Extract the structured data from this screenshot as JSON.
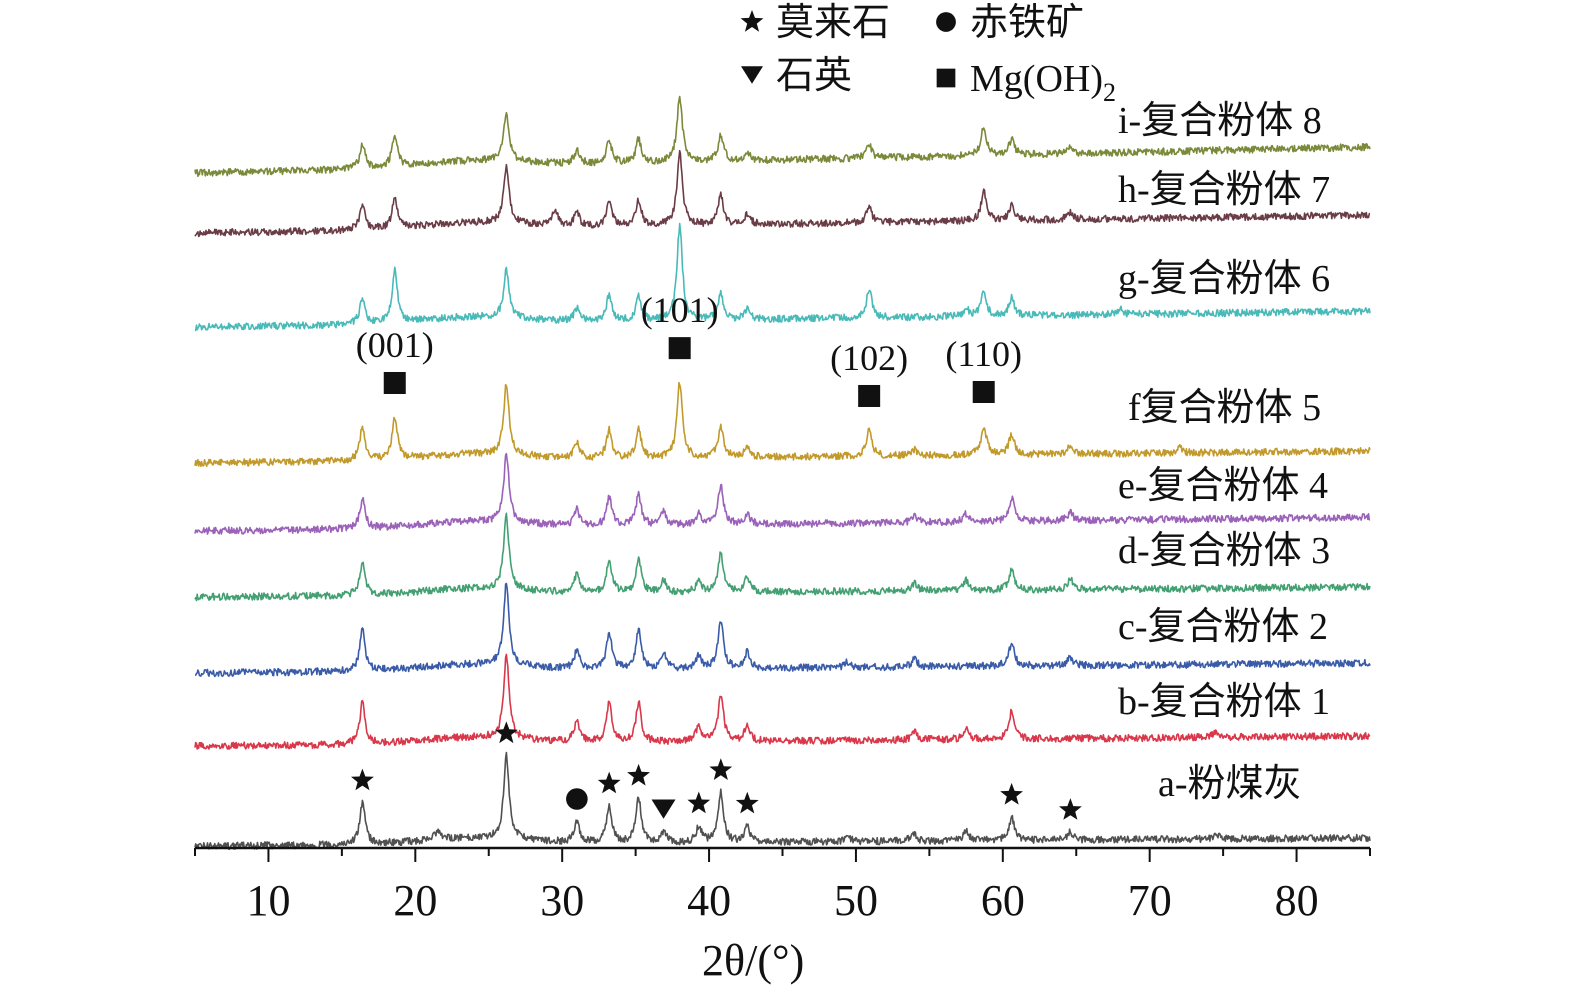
{
  "chart_data": {
    "type": "line",
    "title": "",
    "xlabel": "2θ/(°)",
    "ylabel": "",
    "xlim": [
      5,
      85
    ],
    "xticks": [
      10,
      20,
      30,
      40,
      50,
      60,
      70,
      80
    ],
    "x_tick_labels": [
      "10",
      "20",
      "30",
      "40",
      "50",
      "60",
      "70",
      "80"
    ],
    "y_axis_shown": false,
    "grid": false,
    "legend": {
      "placement": "top-center",
      "entries": [
        {
          "marker": "star",
          "label": "莫来石"
        },
        {
          "marker": "circle",
          "label": "赤铁矿"
        },
        {
          "marker": "triangle-down",
          "label": "石英"
        },
        {
          "marker": "square",
          "label": "Mg(OH)",
          "subscript": "2"
        }
      ]
    },
    "series": [
      {
        "name": "a-粉煤灰",
        "color": "#505050",
        "peaks": [
          [
            16.4,
            0.8
          ],
          [
            21.5,
            0.15
          ],
          [
            26.2,
            1.6
          ],
          [
            31.0,
            0.4
          ],
          [
            33.2,
            0.7
          ],
          [
            35.2,
            0.85
          ],
          [
            36.9,
            0.2
          ],
          [
            39.3,
            0.3
          ],
          [
            40.8,
            0.95
          ],
          [
            42.6,
            0.3
          ],
          [
            49.4,
            0.1
          ],
          [
            53.9,
            0.15
          ],
          [
            57.5,
            0.2
          ],
          [
            60.6,
            0.45
          ],
          [
            64.6,
            0.15
          ],
          [
            74.5,
            0.1
          ]
        ],
        "markers": [
          {
            "type": "star",
            "x": 16.4
          },
          {
            "type": "star",
            "x": 26.2
          },
          {
            "type": "circle",
            "x": 31.0
          },
          {
            "type": "star",
            "x": 33.2
          },
          {
            "type": "star",
            "x": 35.2
          },
          {
            "type": "triangle-down",
            "x": 36.9
          },
          {
            "type": "star",
            "x": 39.3
          },
          {
            "type": "star",
            "x": 40.8
          },
          {
            "type": "star",
            "x": 42.6
          },
          {
            "type": "star",
            "x": 60.6
          },
          {
            "type": "star",
            "x": 64.6
          }
        ]
      },
      {
        "name": "b-复合粉体 1",
        "color": "#d8384a",
        "peaks": [
          [
            16.4,
            0.8
          ],
          [
            26.2,
            1.6
          ],
          [
            31.0,
            0.4
          ],
          [
            33.2,
            0.75
          ],
          [
            35.2,
            0.75
          ],
          [
            39.3,
            0.3
          ],
          [
            40.8,
            0.9
          ],
          [
            42.6,
            0.3
          ],
          [
            54.0,
            0.15
          ],
          [
            57.5,
            0.2
          ],
          [
            60.6,
            0.55
          ],
          [
            74.5,
            0.1
          ]
        ]
      },
      {
        "name": "c-复合粉体 2",
        "color": "#3a5ca8",
        "peaks": [
          [
            16.4,
            0.8
          ],
          [
            26.2,
            1.6
          ],
          [
            31.0,
            0.35
          ],
          [
            33.2,
            0.7
          ],
          [
            35.2,
            0.75
          ],
          [
            36.9,
            0.3
          ],
          [
            39.3,
            0.25
          ],
          [
            40.8,
            0.9
          ],
          [
            42.6,
            0.3
          ],
          [
            49.4,
            0.1
          ],
          [
            54.0,
            0.15
          ],
          [
            60.6,
            0.45
          ],
          [
            64.6,
            0.15
          ]
        ]
      },
      {
        "name": "d-复合粉体 3",
        "color": "#44a072",
        "peaks": [
          [
            16.4,
            0.6
          ],
          [
            26.2,
            1.4
          ],
          [
            31.0,
            0.35
          ],
          [
            33.2,
            0.65
          ],
          [
            35.2,
            0.65
          ],
          [
            36.9,
            0.25
          ],
          [
            39.3,
            0.25
          ],
          [
            40.8,
            0.75
          ],
          [
            42.6,
            0.3
          ],
          [
            54.0,
            0.15
          ],
          [
            57.5,
            0.2
          ],
          [
            60.6,
            0.4
          ],
          [
            64.6,
            0.2
          ]
        ]
      },
      {
        "name": "e-复合粉体 4",
        "color": "#9a62b8",
        "peaks": [
          [
            16.4,
            0.55
          ],
          [
            26.2,
            1.3
          ],
          [
            31.0,
            0.3
          ],
          [
            33.2,
            0.55
          ],
          [
            35.2,
            0.6
          ],
          [
            36.9,
            0.25
          ],
          [
            39.3,
            0.2
          ],
          [
            40.8,
            0.75
          ],
          [
            42.6,
            0.2
          ],
          [
            54.0,
            0.12
          ],
          [
            57.5,
            0.15
          ],
          [
            60.6,
            0.45
          ],
          [
            64.6,
            0.15
          ]
        ]
      },
      {
        "name": "f复合粉体 5",
        "color": "#c29a2c",
        "peaks": [
          [
            16.4,
            0.65
          ],
          [
            18.6,
            0.8
          ],
          [
            26.2,
            1.35
          ],
          [
            31.0,
            0.3
          ],
          [
            33.2,
            0.55
          ],
          [
            35.2,
            0.55
          ],
          [
            38.0,
            1.45
          ],
          [
            40.8,
            0.6
          ],
          [
            42.6,
            0.2
          ],
          [
            50.9,
            0.5
          ],
          [
            54.0,
            0.12
          ],
          [
            58.7,
            0.55
          ],
          [
            60.6,
            0.4
          ],
          [
            64.6,
            0.15
          ],
          [
            72.0,
            0.1
          ]
        ],
        "plane_labels": [
          {
            "label": "(001)",
            "x": 18.6
          },
          {
            "label": "(101)",
            "x": 38.0
          },
          {
            "label": "(102)",
            "x": 50.9
          },
          {
            "label": "(110)",
            "x": 58.7
          }
        ]
      },
      {
        "name": "g-复合粉体 6",
        "color": "#4abab8",
        "peaks": [
          [
            16.4,
            0.5
          ],
          [
            18.6,
            1.0
          ],
          [
            26.2,
            0.9
          ],
          [
            31.0,
            0.25
          ],
          [
            33.2,
            0.5
          ],
          [
            35.2,
            0.45
          ],
          [
            38.0,
            1.8
          ],
          [
            40.8,
            0.5
          ],
          [
            42.6,
            0.2
          ],
          [
            50.9,
            0.55
          ],
          [
            57.5,
            0.15
          ],
          [
            58.7,
            0.45
          ],
          [
            60.6,
            0.35
          ],
          [
            68.0,
            0.1
          ]
        ]
      },
      {
        "name": "h-复合粉体 7",
        "color": "#6a3c46",
        "peaks": [
          [
            16.4,
            0.5
          ],
          [
            18.6,
            0.55
          ],
          [
            26.2,
            1.1
          ],
          [
            29.5,
            0.3
          ],
          [
            31.0,
            0.25
          ],
          [
            33.2,
            0.45
          ],
          [
            35.2,
            0.5
          ],
          [
            38.0,
            1.4
          ],
          [
            40.8,
            0.55
          ],
          [
            42.6,
            0.2
          ],
          [
            50.9,
            0.3
          ],
          [
            58.7,
            0.55
          ],
          [
            60.6,
            0.3
          ],
          [
            64.6,
            0.15
          ]
        ]
      },
      {
        "name": "i-复合粉体 8",
        "color": "#7a8a3a",
        "peaks": [
          [
            16.4,
            0.45
          ],
          [
            18.6,
            0.6
          ],
          [
            26.2,
            0.95
          ],
          [
            31.0,
            0.25
          ],
          [
            33.2,
            0.45
          ],
          [
            35.2,
            0.45
          ],
          [
            38.0,
            1.25
          ],
          [
            40.8,
            0.5
          ],
          [
            42.6,
            0.15
          ],
          [
            50.9,
            0.25
          ],
          [
            58.7,
            0.55
          ],
          [
            60.6,
            0.3
          ],
          [
            64.6,
            0.12
          ]
        ]
      }
    ]
  }
}
